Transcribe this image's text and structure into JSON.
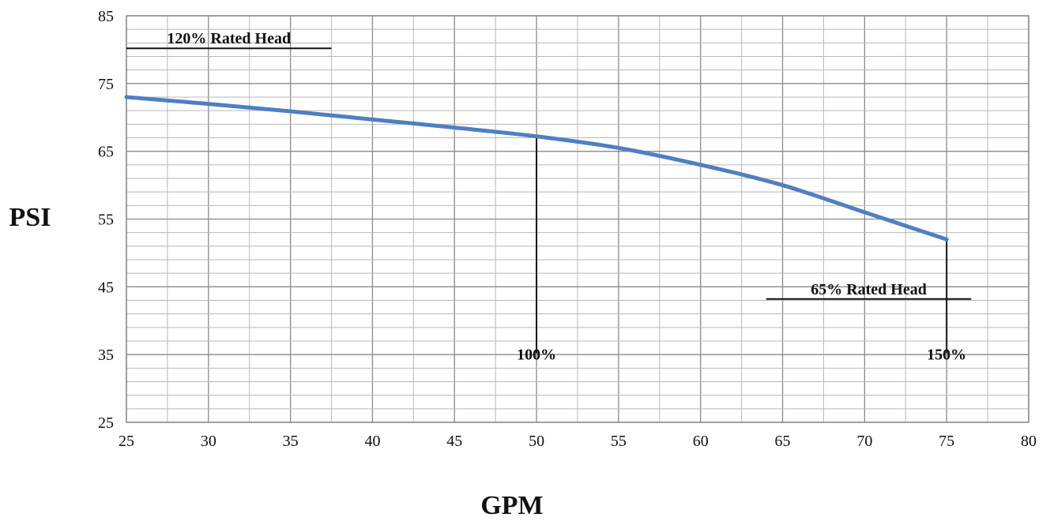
{
  "chart_data": {
    "type": "line",
    "title": "",
    "xlabel": "GPM",
    "ylabel": "PSI",
    "xlim": [
      25,
      80
    ],
    "ylim": [
      25,
      85
    ],
    "x_ticks": [
      25,
      30,
      35,
      40,
      45,
      50,
      55,
      60,
      65,
      70,
      75,
      80
    ],
    "y_ticks": [
      25,
      35,
      45,
      55,
      65,
      75,
      85
    ],
    "x_minor_step": 2.5,
    "y_minor_step": 2,
    "grid": true,
    "legend": "none",
    "series": [
      {
        "color": "#4F7FC1",
        "x": [
          25,
          30,
          35,
          40,
          45,
          50,
          55,
          60,
          65,
          70,
          75
        ],
        "y": [
          73.0,
          72.0,
          70.9,
          69.7,
          68.5,
          67.2,
          65.5,
          63.0,
          60.0,
          56.0,
          52.0
        ]
      }
    ],
    "annotations": [
      {
        "text": "120% Rated Head",
        "x1": 25,
        "x2": 37.5,
        "y": 80.2
      },
      {
        "text": "65% Rated Head",
        "x1": 64,
        "x2": 76.5,
        "y": 43.2
      },
      {
        "text": "100%",
        "x": 50,
        "y_top": 67.2,
        "y_bottom": 35.2
      },
      {
        "text": "150%",
        "x": 75,
        "y_top": 52.0,
        "y_bottom": 35.2
      }
    ]
  }
}
